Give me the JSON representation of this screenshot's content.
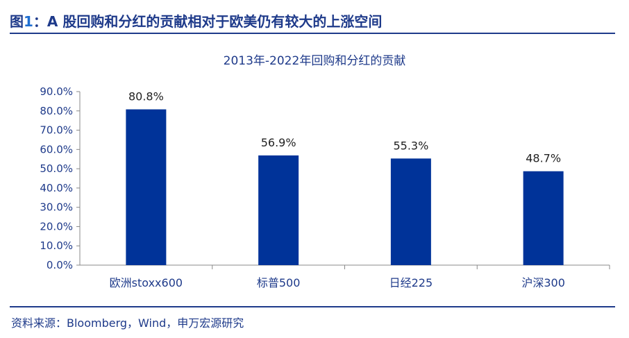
{
  "header": {
    "fig_label": "图",
    "fig_number": "1",
    "title_text": "：A 股回购和分红的贡献相对于欧美仍有较大的上涨空间"
  },
  "footer": {
    "source": "资料来源：Bloomberg，Wind，申万宏源研究"
  },
  "chart_data": {
    "type": "bar",
    "title": "2013年-2022年回购和分红的贡献",
    "categories": [
      "欧洲stoxx600",
      "标普500",
      "日经225",
      "沪深300"
    ],
    "values": [
      80.8,
      56.9,
      55.3,
      48.7
    ],
    "value_labels": [
      "80.8%",
      "56.9%",
      "55.3%",
      "48.7%"
    ],
    "ylim": [
      0,
      90
    ],
    "yticks": [
      0,
      10,
      20,
      30,
      40,
      50,
      60,
      70,
      80,
      90
    ],
    "ytick_labels": [
      "0.0%",
      "10.0%",
      "20.0%",
      "30.0%",
      "40.0%",
      "50.0%",
      "60.0%",
      "70.0%",
      "80.0%",
      "90.0%"
    ],
    "bar_color": "#003399",
    "grid": false,
    "legend": "none"
  }
}
